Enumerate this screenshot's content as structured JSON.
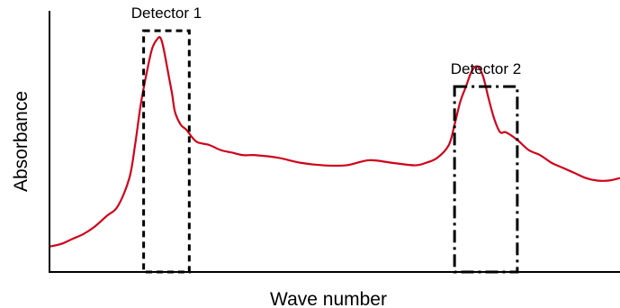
{
  "chart_data": {
    "type": "line",
    "title": "",
    "xlabel": "Wave number",
    "ylabel": "Absorbance",
    "grid": false,
    "xlim": [
      0,
      100
    ],
    "ylim": [
      0,
      100
    ],
    "colors": {
      "line": "#d0021b",
      "axis": "#000000",
      "box": "#000000"
    },
    "series": [
      {
        "x": [
          0,
          2,
          4,
          6,
          8,
          10,
          12,
          14,
          15,
          16,
          17,
          18,
          19,
          19.5,
          20,
          21,
          21.5,
          22,
          23,
          24,
          25,
          26,
          28,
          30,
          32,
          34,
          36,
          40,
          44,
          48,
          52,
          56,
          60,
          64,
          66,
          68,
          70,
          71,
          72,
          73,
          74,
          75,
          76,
          77,
          78,
          79,
          80,
          82,
          84,
          86,
          88,
          90,
          92,
          94,
          96,
          98,
          100
        ],
        "y": [
          10,
          11,
          13,
          15,
          18,
          22,
          26,
          37,
          50,
          66,
          78,
          88,
          92,
          92,
          88,
          76,
          70,
          63,
          58,
          56,
          53,
          51,
          50,
          48,
          47,
          46,
          46,
          45,
          43,
          42,
          42,
          44,
          43,
          42,
          43,
          45,
          50,
          58,
          67,
          73,
          79,
          81,
          77,
          68,
          60,
          55,
          55,
          52,
          48,
          46,
          43,
          41,
          39,
          37,
          36,
          36,
          37
        ]
      }
    ],
    "annotations": [
      {
        "label": "Detector 1",
        "x_range": [
          16.5,
          24.5
        ],
        "y_range": [
          0,
          95
        ],
        "style": "dashed"
      },
      {
        "label": "Detector 2",
        "x_range": [
          71,
          82
        ],
        "y_range": [
          0,
          73
        ],
        "style": "dash-dot"
      }
    ]
  }
}
